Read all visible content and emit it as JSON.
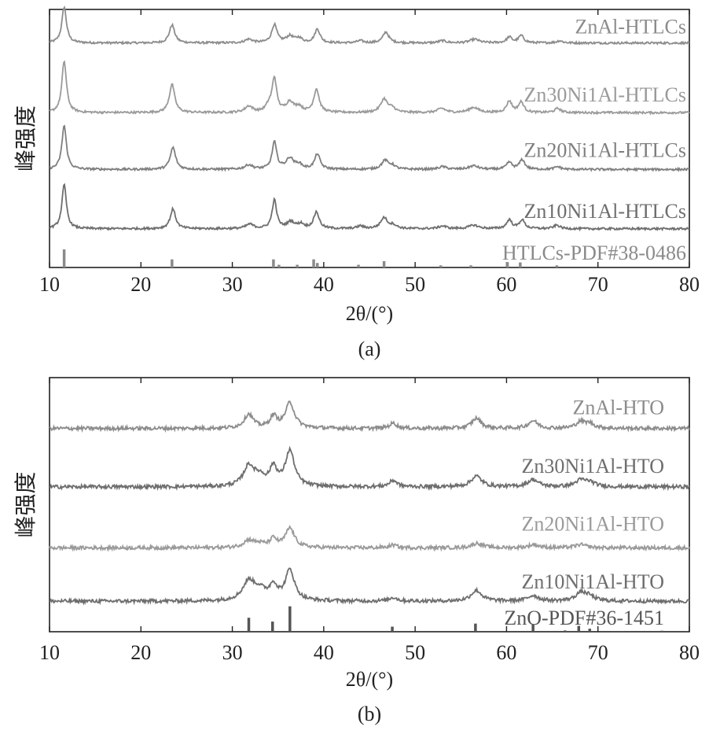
{
  "colors": {
    "axis": "#222222",
    "s1": "#8c8c8c",
    "s2": "#9a9a9a",
    "s3": "#7f7f7f",
    "s4": "#6e6e6e",
    "ref": "#8a8a8a",
    "ref_b": "#555555"
  },
  "chart_data": [
    {
      "type": "line",
      "panel_label": "(a)",
      "xlabel": "2θ/(°)",
      "ylabel": "峰强度",
      "xlim": [
        10,
        80
      ],
      "xticks": [
        10,
        20,
        30,
        40,
        50,
        60,
        70,
        80
      ],
      "grid": false,
      "series": [
        {
          "name": "ZnAl-HTLCs",
          "baseline": 0.87,
          "scale": 0.14,
          "peaks": [
            [
              11.6,
              1.0,
              0.3
            ],
            [
              23.4,
              0.5,
              0.35
            ],
            [
              31.8,
              0.1,
              0.5
            ],
            [
              34.6,
              0.5,
              0.35
            ],
            [
              36.3,
              0.18,
              0.5
            ],
            [
              37.3,
              0.12,
              0.4
            ],
            [
              39.3,
              0.38,
              0.35
            ],
            [
              44.0,
              0.06,
              0.4
            ],
            [
              46.8,
              0.3,
              0.4
            ],
            [
              53.0,
              0.06,
              0.5
            ],
            [
              56.5,
              0.1,
              0.6
            ],
            [
              60.3,
              0.16,
              0.35
            ],
            [
              61.6,
              0.2,
              0.35
            ],
            [
              65.8,
              0.06,
              0.4
            ]
          ]
        },
        {
          "name": "Zn30Ni1Al-HTLCs",
          "baseline": 0.6,
          "scale": 0.2,
          "peaks": [
            [
              11.6,
              1.0,
              0.3
            ],
            [
              23.4,
              0.55,
              0.35
            ],
            [
              31.8,
              0.12,
              0.5
            ],
            [
              34.0,
              0.12,
              0.4
            ],
            [
              34.6,
              0.65,
              0.3
            ],
            [
              36.3,
              0.2,
              0.5
            ],
            [
              37.3,
              0.1,
              0.4
            ],
            [
              39.2,
              0.45,
              0.35
            ],
            [
              46.6,
              0.26,
              0.45
            ],
            [
              47.5,
              0.08,
              0.4
            ],
            [
              52.9,
              0.08,
              0.5
            ],
            [
              56.4,
              0.1,
              0.6
            ],
            [
              60.3,
              0.22,
              0.35
            ],
            [
              61.6,
              0.2,
              0.35
            ],
            [
              65.6,
              0.08,
              0.4
            ]
          ]
        },
        {
          "name": "Zn20Ni1Al-HTLCs",
          "baseline": 0.38,
          "scale": 0.17,
          "peaks": [
            [
              11.6,
              1.0,
              0.3
            ],
            [
              23.5,
              0.5,
              0.35
            ],
            [
              31.8,
              0.1,
              0.5
            ],
            [
              34.6,
              0.62,
              0.3
            ],
            [
              36.3,
              0.25,
              0.5
            ],
            [
              37.3,
              0.1,
              0.4
            ],
            [
              39.3,
              0.35,
              0.35
            ],
            [
              46.7,
              0.2,
              0.45
            ],
            [
              47.5,
              0.08,
              0.4
            ],
            [
              53.0,
              0.06,
              0.5
            ],
            [
              56.4,
              0.08,
              0.6
            ],
            [
              60.3,
              0.16,
              0.35
            ],
            [
              61.7,
              0.22,
              0.35
            ],
            [
              65.6,
              0.06,
              0.4
            ]
          ]
        },
        {
          "name": "Zn10Ni1Al-HTLCs",
          "baseline": 0.15,
          "scale": 0.17,
          "peaks": [
            [
              11.6,
              1.0,
              0.3
            ],
            [
              23.5,
              0.45,
              0.35
            ],
            [
              31.9,
              0.1,
              0.5
            ],
            [
              34.6,
              0.65,
              0.3
            ],
            [
              36.4,
              0.15,
              0.5
            ],
            [
              37.5,
              0.1,
              0.4
            ],
            [
              39.2,
              0.38,
              0.35
            ],
            [
              44.0,
              0.06,
              0.4
            ],
            [
              46.6,
              0.25,
              0.45
            ],
            [
              47.6,
              0.08,
              0.4
            ],
            [
              53.0,
              0.06,
              0.5
            ],
            [
              56.4,
              0.08,
              0.6
            ],
            [
              60.3,
              0.2,
              0.35
            ],
            [
              61.7,
              0.2,
              0.35
            ],
            [
              65.5,
              0.08,
              0.4
            ]
          ]
        }
      ],
      "reference": {
        "name": "HTLCs-PDF#38-0486",
        "lines": [
          [
            11.6,
            1.0
          ],
          [
            23.4,
            0.45
          ],
          [
            34.5,
            0.45
          ],
          [
            35.1,
            0.15
          ],
          [
            37.1,
            0.15
          ],
          [
            38.9,
            0.45
          ],
          [
            39.3,
            0.25
          ],
          [
            43.8,
            0.15
          ],
          [
            46.6,
            0.35
          ],
          [
            52.8,
            0.12
          ],
          [
            56.1,
            0.12
          ],
          [
            60.1,
            0.3
          ],
          [
            61.5,
            0.28
          ],
          [
            65.5,
            0.12
          ]
        ]
      }
    },
    {
      "type": "line",
      "panel_label": "(b)",
      "xlabel": "2θ/(°)",
      "ylabel": "峰强度",
      "xlim": [
        10,
        80
      ],
      "xticks": [
        10,
        20,
        30,
        40,
        50,
        60,
        70,
        80
      ],
      "grid": false,
      "series": [
        {
          "name": "ZnAl-HTO",
          "baseline": 0.8,
          "scale": 0.1,
          "peaks": [
            [
              31.8,
              0.55,
              0.6
            ],
            [
              34.5,
              0.45,
              0.45
            ],
            [
              36.3,
              1.0,
              0.6
            ],
            [
              47.6,
              0.2,
              0.5
            ],
            [
              56.7,
              0.4,
              0.6
            ],
            [
              62.9,
              0.3,
              0.6
            ],
            [
              68.1,
              0.25,
              0.6
            ],
            [
              69.1,
              0.18,
              0.6
            ]
          ]
        },
        {
          "name": "Zn30Ni1Al-HTO",
          "baseline": 0.57,
          "scale": 0.14,
          "peaks": [
            [
              31.8,
              0.55,
              0.7
            ],
            [
              33.0,
              0.25,
              0.8
            ],
            [
              34.5,
              0.5,
              0.45
            ],
            [
              36.3,
              1.0,
              0.6
            ],
            [
              47.6,
              0.18,
              0.5
            ],
            [
              56.7,
              0.3,
              0.7
            ],
            [
              62.9,
              0.2,
              0.7
            ],
            [
              68.1,
              0.17,
              0.7
            ],
            [
              69.1,
              0.12,
              0.7
            ]
          ]
        },
        {
          "name": "Zn20Ni1Al-HTO",
          "baseline": 0.33,
          "scale": 0.09,
          "peaks": [
            [
              31.8,
              0.3,
              0.7
            ],
            [
              33.0,
              0.15,
              0.8
            ],
            [
              34.5,
              0.35,
              0.45
            ],
            [
              36.3,
              0.85,
              0.6
            ],
            [
              47.6,
              0.12,
              0.5
            ],
            [
              56.8,
              0.2,
              0.7
            ],
            [
              63.0,
              0.14,
              0.7
            ],
            [
              68.1,
              0.14,
              0.7
            ]
          ]
        },
        {
          "name": "Zn10Ni1Al-HTO",
          "baseline": 0.12,
          "scale": 0.12,
          "peaks": [
            [
              31.8,
              0.6,
              0.8
            ],
            [
              33.0,
              0.3,
              0.9
            ],
            [
              34.5,
              0.45,
              0.5
            ],
            [
              36.3,
              1.0,
              0.6
            ],
            [
              47.6,
              0.12,
              0.5
            ],
            [
              56.7,
              0.35,
              0.7
            ],
            [
              62.9,
              0.18,
              0.7
            ],
            [
              68.1,
              0.25,
              0.7
            ],
            [
              69.0,
              0.15,
              0.7
            ]
          ]
        }
      ],
      "reference": {
        "name": "ZnO-PDF#36-1451",
        "lines": [
          [
            31.8,
            0.55
          ],
          [
            34.4,
            0.4
          ],
          [
            36.3,
            1.0
          ],
          [
            47.5,
            0.2
          ],
          [
            56.6,
            0.32
          ],
          [
            62.9,
            0.28
          ],
          [
            66.4,
            0.05
          ],
          [
            67.9,
            0.23
          ],
          [
            69.1,
            0.12
          ],
          [
            72.6,
            0.03
          ],
          [
            77.0,
            0.04
          ]
        ]
      }
    }
  ]
}
